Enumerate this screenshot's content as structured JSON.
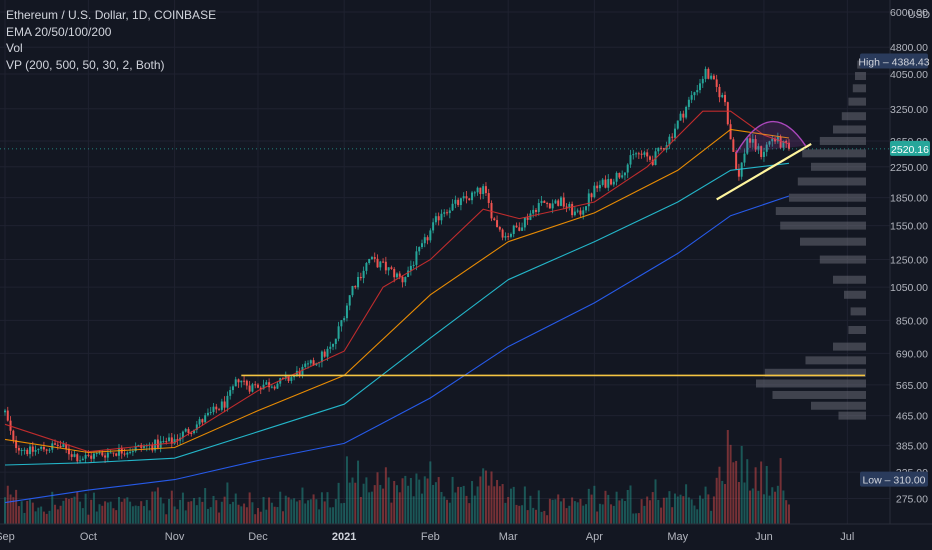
{
  "legend": {
    "symbol": "Ethereum / U.S. Dollar, 1D, COINBASE",
    "ema": "EMA 20/50/100/200",
    "vol": "Vol",
    "vp": "VP (200, 500, 50, 30, 2, Both)"
  },
  "colors": {
    "background": "#131722",
    "up": "#26a69a",
    "down": "#ef5350",
    "ema20": "#d32f2f",
    "ema50": "#ff9800",
    "ema100": "#26c6da",
    "ema200": "#2962ff",
    "support_line": "#f5c542",
    "trend_line": "#fff59d",
    "arc": "#ab47bc",
    "profile": "#787b86"
  },
  "chart_data": {
    "type": "candlestick",
    "title": "Ethereum / U.S. Dollar, 1D, COINBASE",
    "y_scale": "log",
    "currency": "USD",
    "ylim": [
      240,
      6000
    ],
    "y_ticks": [
      6000,
      4800,
      4050,
      3250,
      2650,
      2250,
      1850,
      1550,
      1250,
      1050,
      850,
      690,
      565,
      465,
      385,
      325,
      275
    ],
    "x_ticks": [
      {
        "label": "Sep",
        "date": "2020-09-01"
      },
      {
        "label": "Oct",
        "date": "2020-10-01"
      },
      {
        "label": "Nov",
        "date": "2020-11-01"
      },
      {
        "label": "Dec",
        "date": "2020-12-01"
      },
      {
        "label": "2021",
        "date": "2021-01-01",
        "bold": true
      },
      {
        "label": "Feb",
        "date": "2021-02-01"
      },
      {
        "label": "Mar",
        "date": "2021-03-01"
      },
      {
        "label": "Apr",
        "date": "2021-04-01"
      },
      {
        "label": "May",
        "date": "2021-05-01"
      },
      {
        "label": "Jun",
        "date": "2021-06-01"
      },
      {
        "label": "Jul",
        "date": "2021-07-01"
      }
    ],
    "date_range": [
      "2020-09-01",
      "2021-06-10"
    ],
    "price_path": [
      {
        "date": "2020-09-01",
        "close": 475
      },
      {
        "date": "2020-09-04",
        "close": 390
      },
      {
        "date": "2020-09-10",
        "close": 370
      },
      {
        "date": "2020-09-20",
        "close": 385
      },
      {
        "date": "2020-09-28",
        "close": 355
      },
      {
        "date": "2020-10-10",
        "close": 370
      },
      {
        "date": "2020-10-20",
        "close": 380
      },
      {
        "date": "2020-10-31",
        "close": 395
      },
      {
        "date": "2020-11-10",
        "close": 445
      },
      {
        "date": "2020-11-20",
        "close": 510
      },
      {
        "date": "2020-11-24",
        "close": 590
      },
      {
        "date": "2020-11-28",
        "close": 560
      },
      {
        "date": "2020-12-10",
        "close": 575
      },
      {
        "date": "2020-12-20",
        "close": 640
      },
      {
        "date": "2020-12-28",
        "close": 720
      },
      {
        "date": "2021-01-04",
        "close": 1050
      },
      {
        "date": "2021-01-10",
        "close": 1250
      },
      {
        "date": "2021-01-15",
        "close": 1200
      },
      {
        "date": "2021-01-22",
        "close": 1100
      },
      {
        "date": "2021-01-29",
        "close": 1350
      },
      {
        "date": "2021-02-05",
        "close": 1700
      },
      {
        "date": "2021-02-12",
        "close": 1800
      },
      {
        "date": "2021-02-20",
        "close": 1950
      },
      {
        "date": "2021-02-24",
        "close": 1600
      },
      {
        "date": "2021-02-28",
        "close": 1450
      },
      {
        "date": "2021-03-05",
        "close": 1550
      },
      {
        "date": "2021-03-12",
        "close": 1780
      },
      {
        "date": "2021-03-20",
        "close": 1800
      },
      {
        "date": "2021-03-26",
        "close": 1650
      },
      {
        "date": "2021-04-01",
        "close": 1950
      },
      {
        "date": "2021-04-10",
        "close": 2150
      },
      {
        "date": "2021-04-16",
        "close": 2450
      },
      {
        "date": "2021-04-22",
        "close": 2350
      },
      {
        "date": "2021-04-28",
        "close": 2700
      },
      {
        "date": "2021-05-05",
        "close": 3400
      },
      {
        "date": "2021-05-11",
        "close": 4100
      },
      {
        "date": "2021-05-14",
        "close": 3800
      },
      {
        "date": "2021-05-18",
        "close": 3400
      },
      {
        "date": "2021-05-20",
        "close": 2700
      },
      {
        "date": "2021-05-23",
        "close": 2100
      },
      {
        "date": "2021-05-26",
        "close": 2700
      },
      {
        "date": "2021-05-31",
        "close": 2450
      },
      {
        "date": "2021-06-04",
        "close": 2700
      },
      {
        "date": "2021-06-07",
        "close": 2600
      },
      {
        "date": "2021-06-10",
        "close": 2520
      }
    ],
    "emas": [
      {
        "name": "EMA 20",
        "color": "#d32f2f",
        "points": [
          {
            "date": "2020-09-01",
            "value": 440
          },
          {
            "date": "2020-10-01",
            "value": 370
          },
          {
            "date": "2020-11-01",
            "value": 392
          },
          {
            "date": "2020-12-01",
            "value": 545
          },
          {
            "date": "2021-01-01",
            "value": 700
          },
          {
            "date": "2021-01-15",
            "value": 1050
          },
          {
            "date": "2021-02-01",
            "value": 1250
          },
          {
            "date": "2021-02-20",
            "value": 1720
          },
          {
            "date": "2021-03-05",
            "value": 1620
          },
          {
            "date": "2021-04-01",
            "value": 1800
          },
          {
            "date": "2021-04-20",
            "value": 2250
          },
          {
            "date": "2021-05-10",
            "value": 3200
          },
          {
            "date": "2021-05-20",
            "value": 3200
          },
          {
            "date": "2021-06-01",
            "value": 2750
          },
          {
            "date": "2021-06-10",
            "value": 2600
          }
        ]
      },
      {
        "name": "EMA 50",
        "color": "#ff9800",
        "points": [
          {
            "date": "2020-09-01",
            "value": 400
          },
          {
            "date": "2020-10-01",
            "value": 368
          },
          {
            "date": "2020-11-01",
            "value": 380
          },
          {
            "date": "2020-12-01",
            "value": 480
          },
          {
            "date": "2021-01-01",
            "value": 600
          },
          {
            "date": "2021-02-01",
            "value": 1000
          },
          {
            "date": "2021-03-01",
            "value": 1400
          },
          {
            "date": "2021-04-01",
            "value": 1680
          },
          {
            "date": "2021-05-01",
            "value": 2200
          },
          {
            "date": "2021-05-20",
            "value": 2850
          },
          {
            "date": "2021-06-10",
            "value": 2700
          }
        ]
      },
      {
        "name": "EMA 100",
        "color": "#26c6da",
        "points": [
          {
            "date": "2020-09-01",
            "value": 340
          },
          {
            "date": "2020-10-01",
            "value": 345
          },
          {
            "date": "2020-11-01",
            "value": 355
          },
          {
            "date": "2020-12-01",
            "value": 420
          },
          {
            "date": "2021-01-01",
            "value": 500
          },
          {
            "date": "2021-02-01",
            "value": 760
          },
          {
            "date": "2021-03-01",
            "value": 1100
          },
          {
            "date": "2021-04-01",
            "value": 1400
          },
          {
            "date": "2021-05-01",
            "value": 1800
          },
          {
            "date": "2021-05-20",
            "value": 2200
          },
          {
            "date": "2021-06-10",
            "value": 2300
          }
        ]
      },
      {
        "name": "EMA 200",
        "color": "#2962ff",
        "points": [
          {
            "date": "2020-09-01",
            "value": 268
          },
          {
            "date": "2020-10-01",
            "value": 290
          },
          {
            "date": "2020-11-01",
            "value": 310
          },
          {
            "date": "2020-12-01",
            "value": 350
          },
          {
            "date": "2021-01-01",
            "value": 390
          },
          {
            "date": "2021-02-01",
            "value": 520
          },
          {
            "date": "2021-03-01",
            "value": 720
          },
          {
            "date": "2021-04-01",
            "value": 950
          },
          {
            "date": "2021-05-01",
            "value": 1300
          },
          {
            "date": "2021-05-20",
            "value": 1650
          },
          {
            "date": "2021-06-10",
            "value": 1870
          }
        ]
      }
    ],
    "support_level": 600,
    "trendline": [
      {
        "date": "2021-05-15",
        "value": 1830
      },
      {
        "date": "2021-06-18",
        "value": 2600
      }
    ],
    "arc": [
      {
        "date": "2021-05-22",
        "value": 2450
      },
      {
        "date": "2021-06-16",
        "value": 2570
      }
    ],
    "volume_profile": [
      {
        "price": 4300,
        "rel": 0.08
      },
      {
        "price": 4000,
        "rel": 0.1
      },
      {
        "price": 3700,
        "rel": 0.12
      },
      {
        "price": 3400,
        "rel": 0.16
      },
      {
        "price": 3100,
        "rel": 0.22
      },
      {
        "price": 2850,
        "rel": 0.3
      },
      {
        "price": 2650,
        "rel": 0.42
      },
      {
        "price": 2450,
        "rel": 0.58
      },
      {
        "price": 2250,
        "rel": 0.5
      },
      {
        "price": 2050,
        "rel": 0.62
      },
      {
        "price": 1850,
        "rel": 0.7
      },
      {
        "price": 1700,
        "rel": 0.82
      },
      {
        "price": 1550,
        "rel": 0.78
      },
      {
        "price": 1400,
        "rel": 0.6
      },
      {
        "price": 1250,
        "rel": 0.42
      },
      {
        "price": 1100,
        "rel": 0.3
      },
      {
        "price": 1000,
        "rel": 0.2
      },
      {
        "price": 900,
        "rel": 0.14
      },
      {
        "price": 800,
        "rel": 0.16
      },
      {
        "price": 720,
        "rel": 0.3
      },
      {
        "price": 660,
        "rel": 0.55
      },
      {
        "price": 610,
        "rel": 0.92
      },
      {
        "price": 570,
        "rel": 1.0
      },
      {
        "price": 530,
        "rel": 0.85
      },
      {
        "price": 495,
        "rel": 0.5
      },
      {
        "price": 465,
        "rel": 0.25
      }
    ],
    "price_tags": {
      "high_label": "High",
      "high_value": "4384.43",
      "high": 4384.43,
      "last_value": "2520.16",
      "last": 2520.16,
      "low_label": "Low",
      "low_value": "310.00",
      "low": 310.0,
      "currency_label": "USD"
    }
  }
}
